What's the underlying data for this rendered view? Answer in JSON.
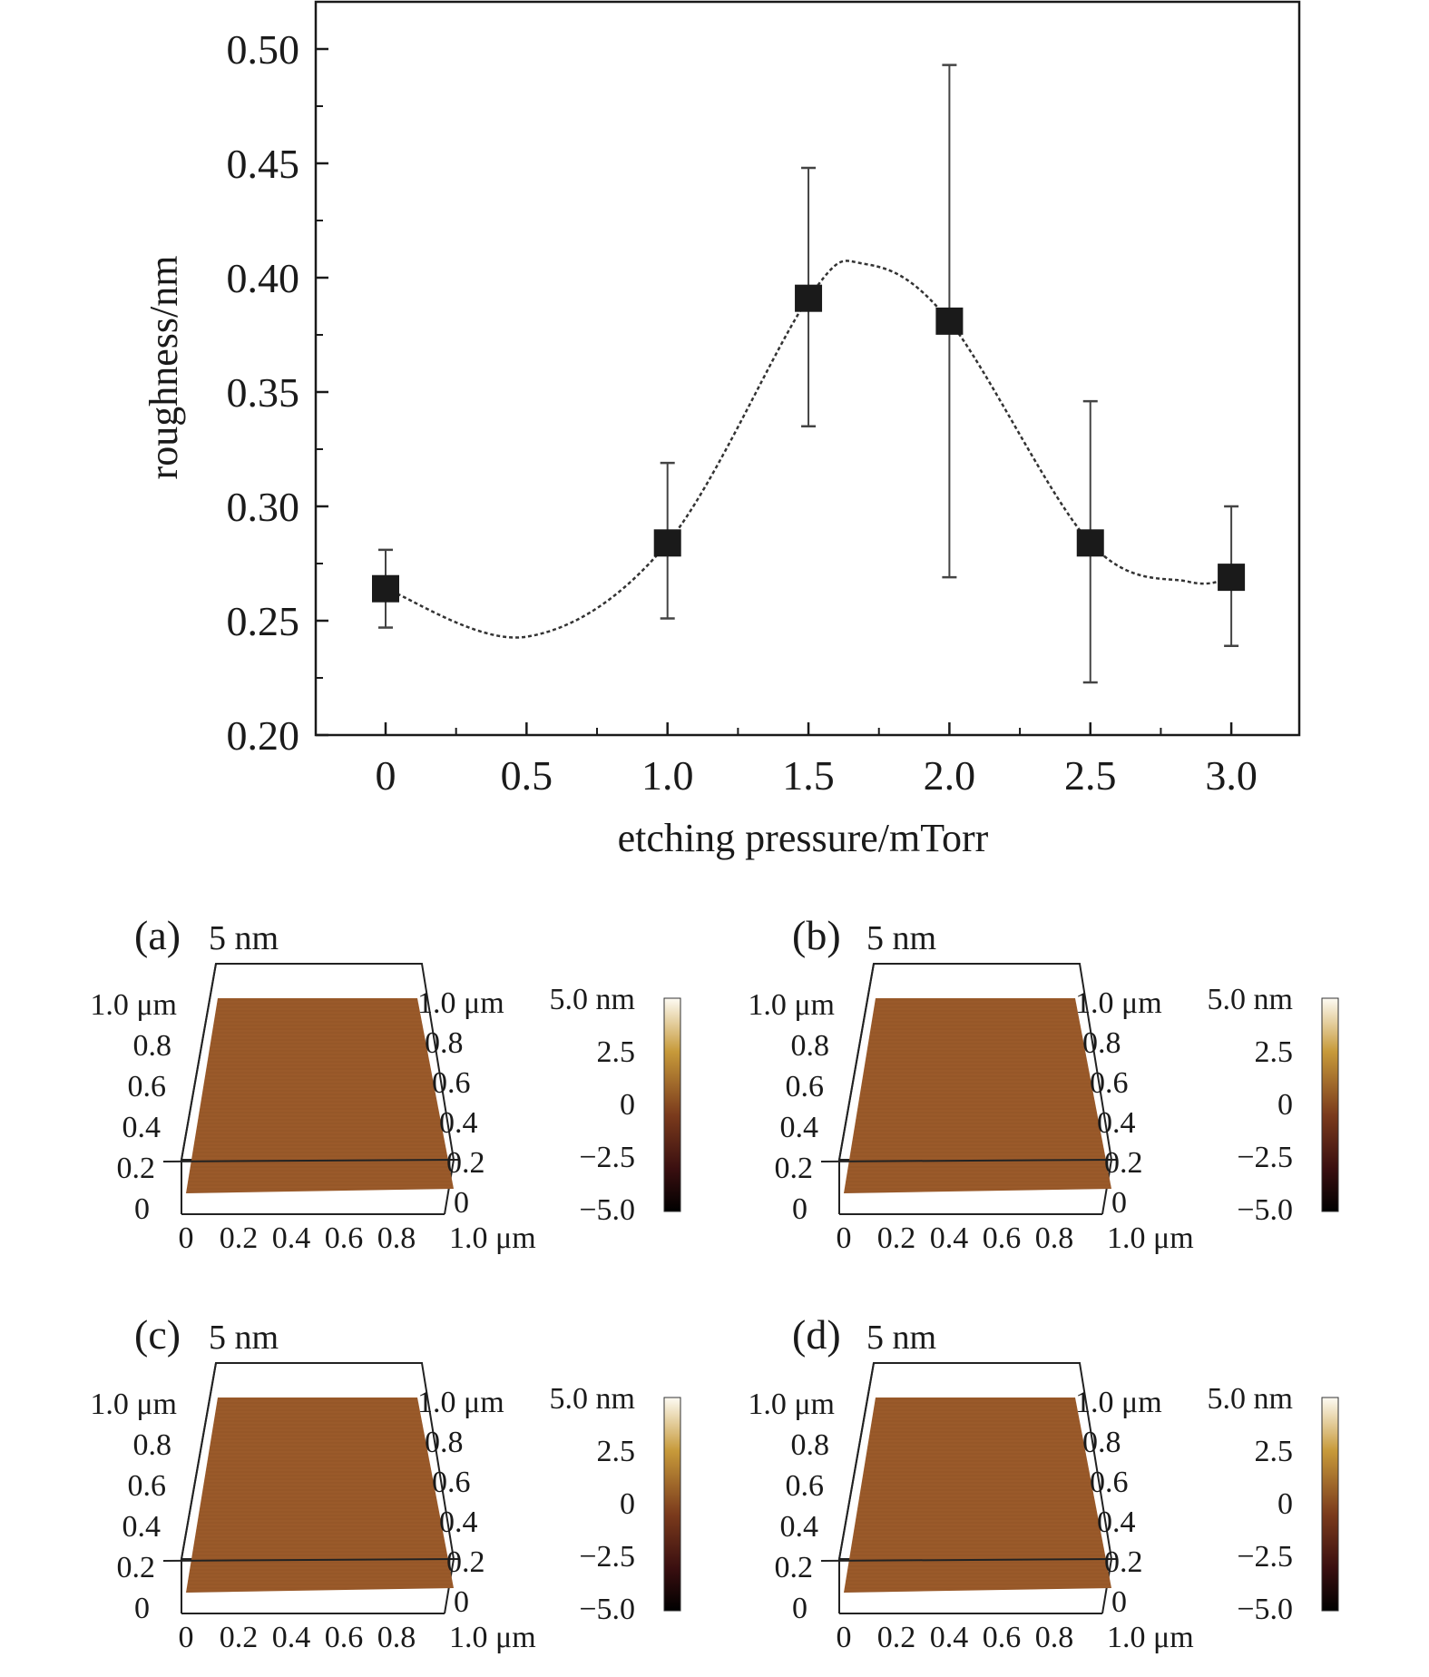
{
  "chart_data": {
    "type": "scatter",
    "xlabel": "etching pressure/mTorr",
    "ylabel": "roughness/nm",
    "xlim": [
      -0.25,
      3.25
    ],
    "ylim": [
      0.2,
      0.52
    ],
    "x_ticks": [
      0,
      0.5,
      1.0,
      1.5,
      2.0,
      2.5,
      3.0
    ],
    "x_tick_labels": [
      "0",
      "0.5",
      "1.0",
      "1.5",
      "2.0",
      "2.5",
      "3.0"
    ],
    "y_ticks": [
      0.2,
      0.25,
      0.3,
      0.35,
      0.4,
      0.45,
      0.5
    ],
    "y_tick_labels": [
      "0.20",
      "0.25",
      "0.30",
      "0.35",
      "0.40",
      "0.45",
      "0.50"
    ],
    "grid": false,
    "marker": "square",
    "fit_line": "dotted smooth curve",
    "series": [
      {
        "x": [
          0,
          1.0,
          1.5,
          2.0,
          2.5,
          3.0
        ],
        "y": [
          0.264,
          0.284,
          0.391,
          0.381,
          0.284,
          0.269
        ],
        "y_err_low": [
          0.247,
          0.251,
          0.335,
          0.269,
          0.223,
          0.239
        ],
        "y_err_high": [
          0.281,
          0.319,
          0.448,
          0.493,
          0.346,
          0.3
        ]
      }
    ]
  },
  "afm_panels": [
    {
      "label": "(a)",
      "height_label": "5 nm",
      "axis_y_labels": [
        "1.0 μm",
        "0.8",
        "0.6",
        "0.4",
        "0.2",
        "0"
      ],
      "axis_right_labels": [
        "1.0 μm",
        "0.8",
        "0.6",
        "0.4",
        "0.2",
        "0"
      ],
      "axis_x_labels": [
        "0",
        "0.2",
        "0.4",
        "0.6",
        "0.8",
        "1.0 μm"
      ],
      "colorbar_labels": [
        "5.0 nm",
        "2.5",
        "0",
        "−2.5",
        "−5.0"
      ]
    },
    {
      "label": "(b)",
      "height_label": "5 nm",
      "axis_y_labels": [
        "1.0 μm",
        "0.8",
        "0.6",
        "0.4",
        "0.2",
        "0"
      ],
      "axis_right_labels": [
        "1.0 μm",
        "0.8",
        "0.6",
        "0.4",
        "0.2",
        "0"
      ],
      "axis_x_labels": [
        "0",
        "0.2",
        "0.4",
        "0.6",
        "0.8",
        "1.0 μm"
      ],
      "colorbar_labels": [
        "5.0 nm",
        "2.5",
        "0",
        "−2.5",
        "−5.0"
      ]
    },
    {
      "label": "(c)",
      "height_label": "5 nm",
      "axis_y_labels": [
        "1.0 μm",
        "0.8",
        "0.6",
        "0.4",
        "0.2",
        "0"
      ],
      "axis_right_labels": [
        "1.0 μm",
        "0.8",
        "0.6",
        "0.4",
        "0.2",
        "0"
      ],
      "axis_x_labels": [
        "0",
        "0.2",
        "0.4",
        "0.6",
        "0.8",
        "1.0 μm"
      ],
      "colorbar_labels": [
        "5.0 nm",
        "2.5",
        "0",
        "−2.5",
        "−5.0"
      ]
    },
    {
      "label": "(d)",
      "height_label": "5 nm",
      "axis_y_labels": [
        "1.0 μm",
        "0.8",
        "0.6",
        "0.4",
        "0.2",
        "0"
      ],
      "axis_right_labels": [
        "1.0 μm",
        "0.8",
        "0.6",
        "0.4",
        "0.2",
        "0"
      ],
      "axis_x_labels": [
        "0",
        "0.2",
        "0.4",
        "0.6",
        "0.8",
        "1.0 μm"
      ],
      "colorbar_labels": [
        "5.0 nm",
        "2.5",
        "0",
        "−2.5",
        "−5.0"
      ]
    }
  ],
  "colors": {
    "marker": "#1a1a1a",
    "surface": "#9a5a2a",
    "surface_dark": "#6e3a18",
    "colorbar_stops": [
      "#fdfbf3",
      "#c79a3a",
      "#7a3a1c",
      "#3a0f10",
      "#000000"
    ]
  }
}
